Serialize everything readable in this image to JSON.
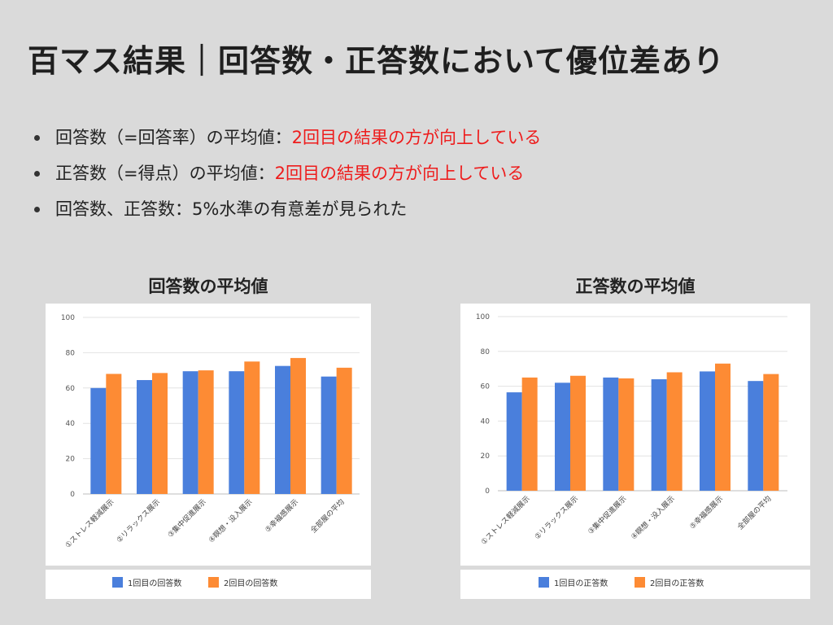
{
  "slide": {
    "title": "百マス結果｜回答数・正答数において優位差あり",
    "bullets": [
      {
        "label": "回答数（=回答率）の平均値：",
        "highlight": "2回目の結果の方が向上している"
      },
      {
        "label": "正答数（=得点）の平均値：",
        "highlight": "2回目の結果の方が向上している"
      },
      {
        "label": "回答数、正答数：5%水準の有意差が見られた",
        "highlight": ""
      }
    ]
  },
  "colors": {
    "series1": "#4a7fdc",
    "series2": "#fd8b34",
    "highlight": "#ee1c1c",
    "grid": "#e2e2e2"
  },
  "chart_data": [
    {
      "type": "bar",
      "title": "回答数の平均値",
      "categories": [
        "①ストレス軽減展示",
        "②リラックス展示",
        "③集中促進展示",
        "④瞑想・没入展示",
        "⑤幸福感展示",
        "全部屋の平均"
      ],
      "series": [
        {
          "name": "1回目の回答数",
          "values": [
            60,
            64.5,
            69.5,
            69.5,
            72.5,
            66.5
          ]
        },
        {
          "name": "2回目の回答数",
          "values": [
            68,
            68.5,
            70,
            75,
            77,
            71.5
          ]
        }
      ],
      "ylim": [
        0,
        100
      ],
      "yticks": [
        0,
        20,
        40,
        60,
        80,
        100
      ],
      "grid": true,
      "legend": "bottom"
    },
    {
      "type": "bar",
      "title": "正答数の平均値",
      "categories": [
        "①ストレス軽減展示",
        "②リラックス展示",
        "③集中促進展示",
        "④瞑想・没入展示",
        "⑤幸福感展示",
        "全部屋の平均"
      ],
      "series": [
        {
          "name": "1回目の正答数",
          "values": [
            56.5,
            62,
            65,
            64,
            68.5,
            63
          ]
        },
        {
          "name": "2回目の正答数",
          "values": [
            65,
            66,
            64.5,
            68,
            73,
            67
          ]
        }
      ],
      "ylim": [
        0,
        100
      ],
      "yticks": [
        0,
        20,
        40,
        60,
        80,
        100
      ],
      "grid": true,
      "legend": "bottom"
    }
  ]
}
